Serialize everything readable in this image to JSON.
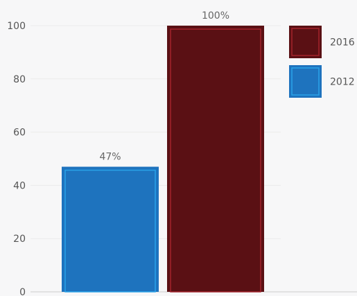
{
  "chart_data": {
    "type": "bar",
    "categories": [
      "2012",
      "2016"
    ],
    "series": [
      {
        "name": "2012",
        "value": 47,
        "label": "47%",
        "color": "#1e73be",
        "border": "#2aa3e8"
      },
      {
        "name": "2016",
        "value": 100,
        "label": "100%",
        "color": "#5a1014",
        "border": "#a3222b"
      }
    ],
    "y_ticks": [
      "0",
      "20",
      "40",
      "60",
      "80",
      "100"
    ],
    "ylim": [
      0,
      100
    ],
    "grid": true,
    "legend": {
      "placement": "top-right",
      "order": [
        "2016",
        "2012"
      ]
    },
    "colors": {
      "gridline": "#ebebeb",
      "baseline": "#cccccc",
      "tick_text": "#555555",
      "label_text": "#666666"
    }
  }
}
